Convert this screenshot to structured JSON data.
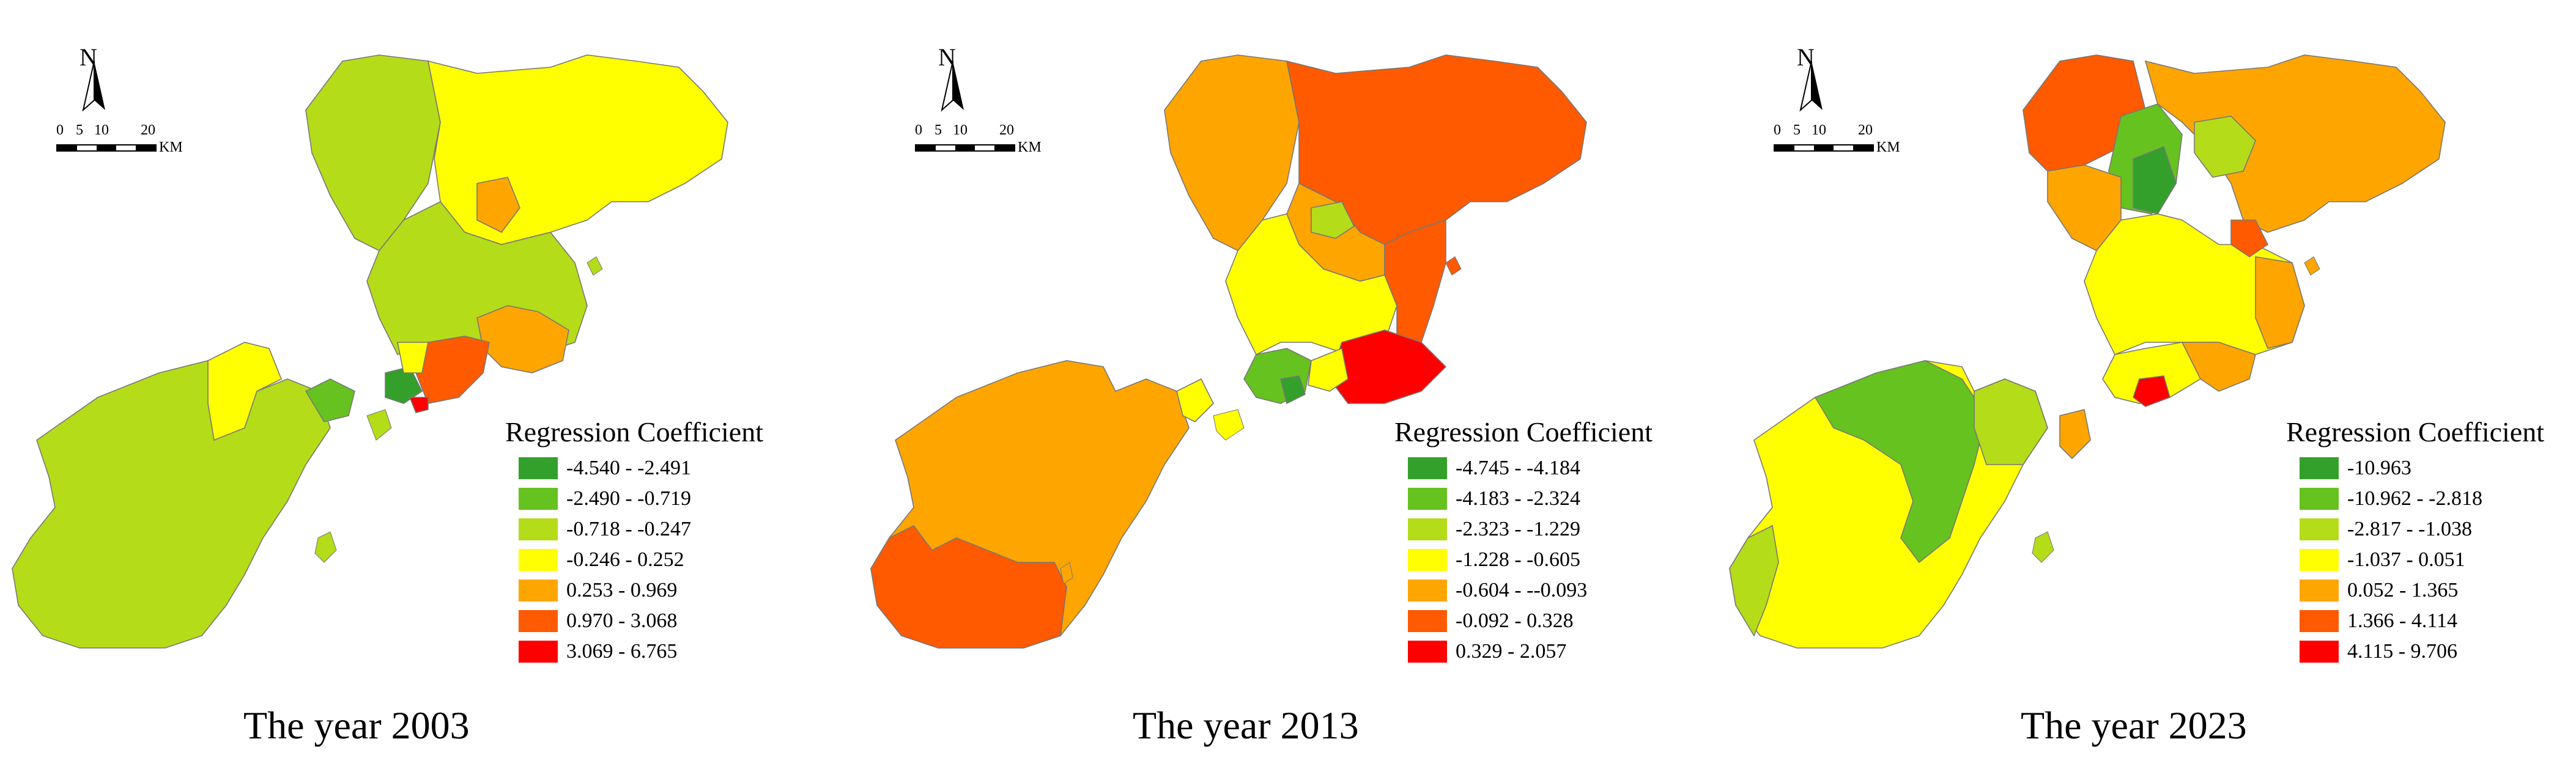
{
  "compass": {
    "north_label": "N",
    "icon": "north-arrow"
  },
  "scale": {
    "ticks": [
      "0",
      "5",
      "10",
      "20"
    ],
    "unit": "KM"
  },
  "legend_colors": [
    "#33a02c",
    "#66c21f",
    "#b4dc19",
    "#ffff00",
    "#ffa500",
    "#ff5a00",
    "#ff0000"
  ],
  "panels": [
    {
      "year_label": "The year 2003",
      "legend_title": "Regression Coefficient",
      "classes": [
        "-4.540 - -2.491",
        "-2.490 - -0.719",
        "-0.718 - -0.247",
        "-0.246 - 0.252",
        "0.253 - 0.969",
        "0.970 - 3.068",
        "3.069 - 6.765"
      ]
    },
    {
      "year_label": "The year 2013",
      "legend_title": "Regression Coefficient",
      "classes": [
        "-4.745 - -4.184",
        "-4.183 - -2.324",
        "-2.323 - -1.229",
        "-1.228 - -0.605",
        "-0.604 - --0.093",
        "-0.092 - 0.328",
        "0.329 - 2.057"
      ]
    },
    {
      "year_label": "The year 2023",
      "legend_title": "Regression Coefficient",
      "classes": [
        "-10.963",
        "-10.962 - -2.818",
        "-2.817 - -1.038",
        "-1.037 - 0.051",
        "0.052 - 1.365",
        "1.366 - 4.114",
        "4.115 - 9.706"
      ]
    }
  ]
}
